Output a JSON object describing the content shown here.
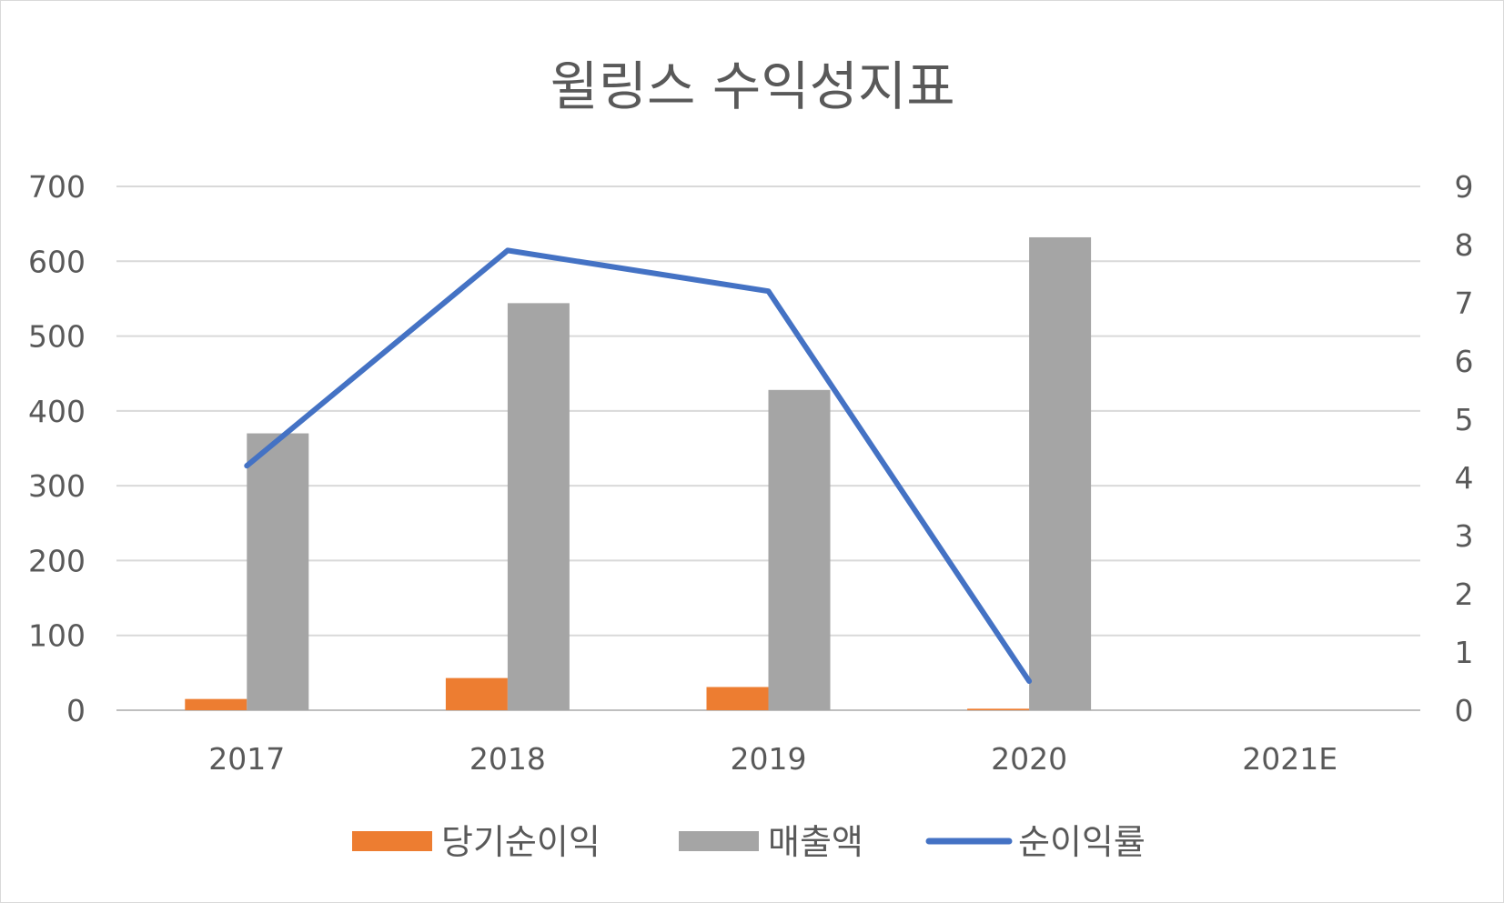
{
  "chart_data": {
    "type": "bar",
    "title": "윌링스 수익성지표",
    "categories": [
      "2017",
      "2018",
      "2019",
      "2020",
      "2021E"
    ],
    "series": [
      {
        "name": "당기순이익",
        "type": "bar",
        "axis": "left",
        "color": "#ED7D31",
        "values": [
          15,
          43,
          31,
          2,
          null
        ]
      },
      {
        "name": "매출액",
        "type": "bar",
        "axis": "left",
        "color": "#A5A5A5",
        "values": [
          370,
          544,
          428,
          632,
          null
        ]
      },
      {
        "name": "순이익률",
        "type": "line",
        "axis": "right",
        "color": "#4472C4",
        "values": [
          4.2,
          7.9,
          7.2,
          0.5,
          null
        ]
      }
    ],
    "y_left": {
      "min": 0,
      "max": 700,
      "ticks": [
        "0",
        "100",
        "200",
        "300",
        "400",
        "500",
        "600",
        "700"
      ]
    },
    "y_right": {
      "min": 0,
      "max": 9,
      "ticks": [
        "0",
        "1",
        "2",
        "3",
        "4",
        "5",
        "6",
        "7",
        "8",
        "9"
      ]
    },
    "grid": true,
    "legend_position": "bottom"
  }
}
